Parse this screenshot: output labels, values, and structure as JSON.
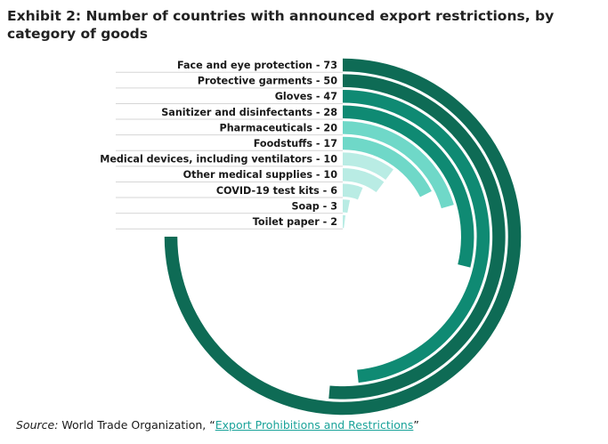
{
  "title": "Exhibit 2: Number of countries with announced export restrictions, by category of goods",
  "source": {
    "lead": "Source:",
    "org": " World Trade Organization, “",
    "link_text": "Export Prohibitions and Restrictions",
    "tail": "”"
  },
  "colors": {
    "accent": "#1aa39a",
    "ring_dark": "#0e6b55",
    "ring_mid": "#0f8a73",
    "ring_light": "#6fd8c8",
    "ring_pale": "#b9ece4"
  },
  "chart_data": {
    "type": "radial-bar",
    "max_value": 73,
    "categories": [
      "Face and eye protection",
      "Protective garments",
      "Gloves",
      "Sanitizer and disinfectants",
      "Pharmaceuticals",
      "Foodstuffs",
      "Medical devices, including ventilators",
      "Other medical supplies",
      "COVID-19 test kits",
      "Soap",
      "Toilet paper"
    ],
    "values": [
      73,
      50,
      47,
      28,
      20,
      17,
      10,
      10,
      6,
      3,
      2
    ],
    "labels": [
      "Face and eye protection - 73",
      "Protective garments - 50",
      "Gloves - 47",
      "Sanitizer and disinfectants - 28",
      "Pharmaceuticals - 20",
      "Foodstuffs - 17",
      "Medical devices, including ventilators - 10",
      "Other medical supplies - 10",
      "COVID-19 test kits - 6",
      "Soap - 3",
      "Toilet paper - 2"
    ],
    "colors": [
      "#0e6b55",
      "#0e6b55",
      "#0f8a73",
      "#0f8a73",
      "#6fd8c8",
      "#6fd8c8",
      "#b9ece4",
      "#b9ece4",
      "#b9ece4",
      "#b9ece4",
      "#b9ece4"
    ]
  }
}
